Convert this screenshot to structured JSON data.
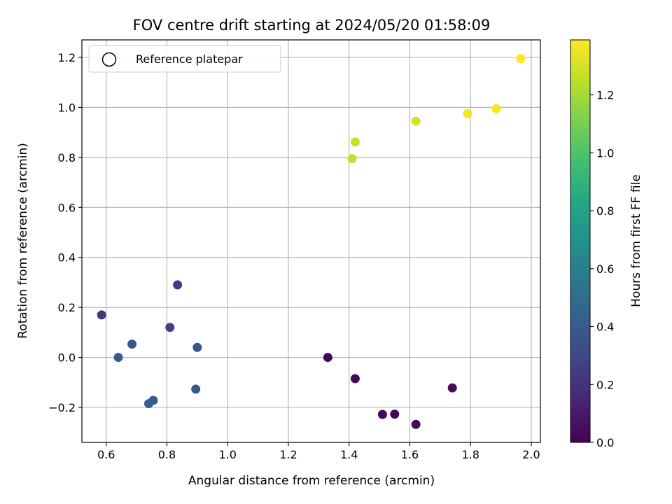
{
  "chart_data": {
    "type": "scatter",
    "title": "FOV centre drift starting at 2024/05/20 01:58:09",
    "xlabel": "Angular distance from reference (arcmin)",
    "ylabel": "Rotation from reference (arcmin)",
    "xlim": [
      0.52,
      2.03
    ],
    "ylim": [
      -0.34,
      1.27
    ],
    "xticks": [
      0.6,
      0.8,
      1.0,
      1.2,
      1.4,
      1.6,
      1.8,
      2.0
    ],
    "xtick_labels": [
      "0.6",
      "0.8",
      "1.0",
      "1.2",
      "1.4",
      "1.6",
      "1.8",
      "2.0"
    ],
    "yticks": [
      -0.2,
      0.0,
      0.2,
      0.4,
      0.6,
      0.8,
      1.0,
      1.2
    ],
    "ytick_labels": [
      "−0.2",
      "0.0",
      "0.2",
      "0.4",
      "0.6",
      "0.8",
      "1.0",
      "1.2"
    ],
    "grid": true,
    "legend": {
      "placement": "upper-left",
      "entries": [
        "Reference platepar"
      ]
    },
    "colorbar": {
      "label": "Hours from first FF file",
      "colormap": "viridis",
      "range": [
        0.0,
        1.39
      ],
      "ticks": [
        0.0,
        0.2,
        0.4,
        0.6,
        0.8,
        1.0,
        1.2
      ],
      "tick_labels": [
        "0.0",
        "0.2",
        "0.4",
        "0.6",
        "0.8",
        "1.0",
        "1.2"
      ]
    },
    "points": [
      {
        "x": 1.33,
        "y": 0.0,
        "c": 0.02
      },
      {
        "x": 1.42,
        "y": -0.085,
        "c": 0.03
      },
      {
        "x": 1.51,
        "y": -0.228,
        "c": 0.02
      },
      {
        "x": 1.55,
        "y": -0.227,
        "c": 0.02
      },
      {
        "x": 1.62,
        "y": -0.268,
        "c": 0.03
      },
      {
        "x": 1.74,
        "y": -0.122,
        "c": 0.04
      },
      {
        "x": 0.585,
        "y": 0.17,
        "c": 0.22
      },
      {
        "x": 0.835,
        "y": 0.29,
        "c": 0.24
      },
      {
        "x": 0.81,
        "y": 0.12,
        "c": 0.26
      },
      {
        "x": 0.64,
        "y": 0.0,
        "c": 0.4
      },
      {
        "x": 0.685,
        "y": 0.053,
        "c": 0.38
      },
      {
        "x": 0.74,
        "y": -0.185,
        "c": 0.42
      },
      {
        "x": 0.755,
        "y": -0.172,
        "c": 0.4
      },
      {
        "x": 0.9,
        "y": 0.04,
        "c": 0.36
      },
      {
        "x": 0.895,
        "y": -0.127,
        "c": 0.38
      },
      {
        "x": 1.41,
        "y": 0.795,
        "c": 1.26
      },
      {
        "x": 1.42,
        "y": 0.862,
        "c": 1.27
      },
      {
        "x": 1.62,
        "y": 0.945,
        "c": 1.3
      },
      {
        "x": 1.79,
        "y": 0.975,
        "c": 1.37
      },
      {
        "x": 1.885,
        "y": 0.995,
        "c": 1.38
      },
      {
        "x": 1.965,
        "y": 1.195,
        "c": 1.39
      }
    ]
  }
}
